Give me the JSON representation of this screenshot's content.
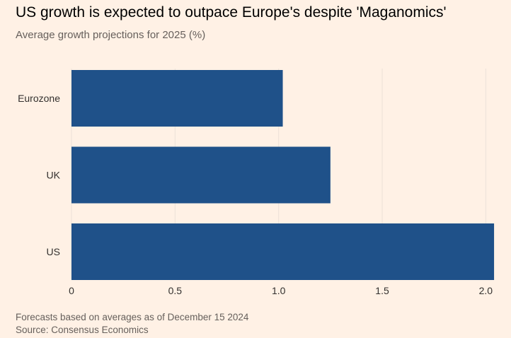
{
  "header": {
    "title": "US growth is expected to outpace Europe's despite 'Maganomics'",
    "subtitle": "Average growth projections for 2025 (%)"
  },
  "footer": {
    "note": "Forecasts based on averages as of December 15 2024",
    "source": "Source: Consensus Economics"
  },
  "colors": {
    "bar": "#1f5189",
    "background": "#fff1e5",
    "grid": "#ece1d8",
    "text": "#33302e"
  },
  "chart_data": {
    "type": "bar",
    "orientation": "horizontal",
    "title": "US growth is expected to outpace Europe's despite 'Maganomics'",
    "subtitle": "Average growth projections for 2025 (%)",
    "categories": [
      "Eurozone",
      "UK",
      "US"
    ],
    "values": [
      1.02,
      1.25,
      2.04
    ],
    "xlim": [
      0,
      2.05
    ],
    "xticks": [
      0,
      0.5,
      1.0,
      1.5,
      2.0
    ],
    "xtick_labels": [
      "0",
      "0.5",
      "1.0",
      "1.5",
      "2.0"
    ],
    "xlabel": "",
    "ylabel": "",
    "grid": "vertical"
  }
}
